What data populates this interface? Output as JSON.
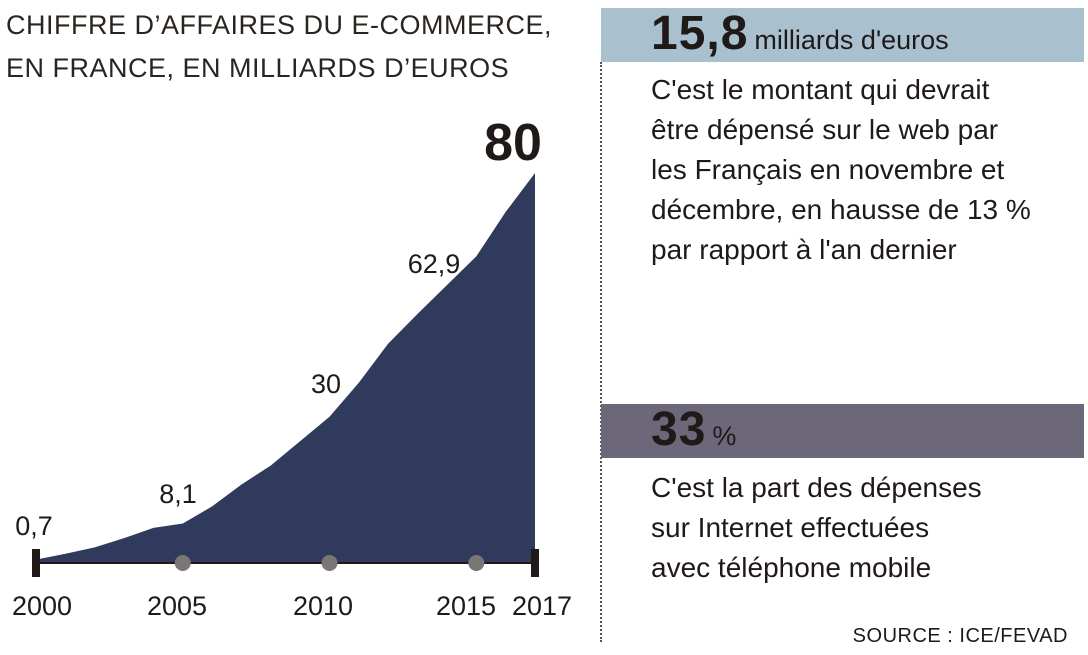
{
  "chart_data": {
    "type": "area",
    "title_line1": "CHIFFRE D’AFFAIRES DU E-COMMERCE,",
    "title_line2": "EN FRANCE, EN MILLIARDS D’EUROS",
    "x": [
      2000,
      2001,
      2002,
      2003,
      2004,
      2005,
      2006,
      2007,
      2008,
      2009,
      2010,
      2011,
      2012,
      2013,
      2014,
      2015,
      2016,
      2017
    ],
    "y": [
      0.7,
      1.9,
      3.2,
      5.1,
      7.2,
      8.1,
      11.6,
      16.1,
      20.0,
      25.0,
      30.0,
      37.0,
      45.0,
      51.1,
      57.0,
      62.9,
      72.0,
      80.0
    ],
    "xlim": [
      2000,
      2017
    ],
    "ylim": [
      0,
      80
    ],
    "tick_labels": [
      "2000",
      "2005",
      "2010",
      "2015",
      "2017"
    ],
    "tick_values": [
      2000,
      2005,
      2010,
      2015,
      2017
    ],
    "data_labels": [
      {
        "x": 2000,
        "text": "0,7"
      },
      {
        "x": 2005,
        "text": "8,1"
      },
      {
        "x": 2010,
        "text": "30"
      },
      {
        "x": 2015,
        "text": "62,9"
      },
      {
        "x": 2017,
        "text": "80"
      }
    ],
    "area_color": "#2f3a5d",
    "marker_color": "#7b7676",
    "axis_color": "#1f1a17",
    "grid": false
  },
  "stats": [
    {
      "value": "15,8",
      "unit": "milliards d'euros",
      "band_color": "#a9c0cf",
      "lines": [
        "C'est le montant qui devrait",
        "être dépensé sur le web par",
        "les Français en novembre et",
        "décembre, en hausse de 13 %",
        "par rapport à l'an dernier"
      ]
    },
    {
      "value": "33",
      "unit": "%",
      "band_color": "#6c6779",
      "lines": [
        "C'est la part des dépenses",
        "sur Internet effectuées",
        "avec téléphone mobile"
      ]
    }
  ],
  "source": "SOURCE : ICE/FEVAD"
}
